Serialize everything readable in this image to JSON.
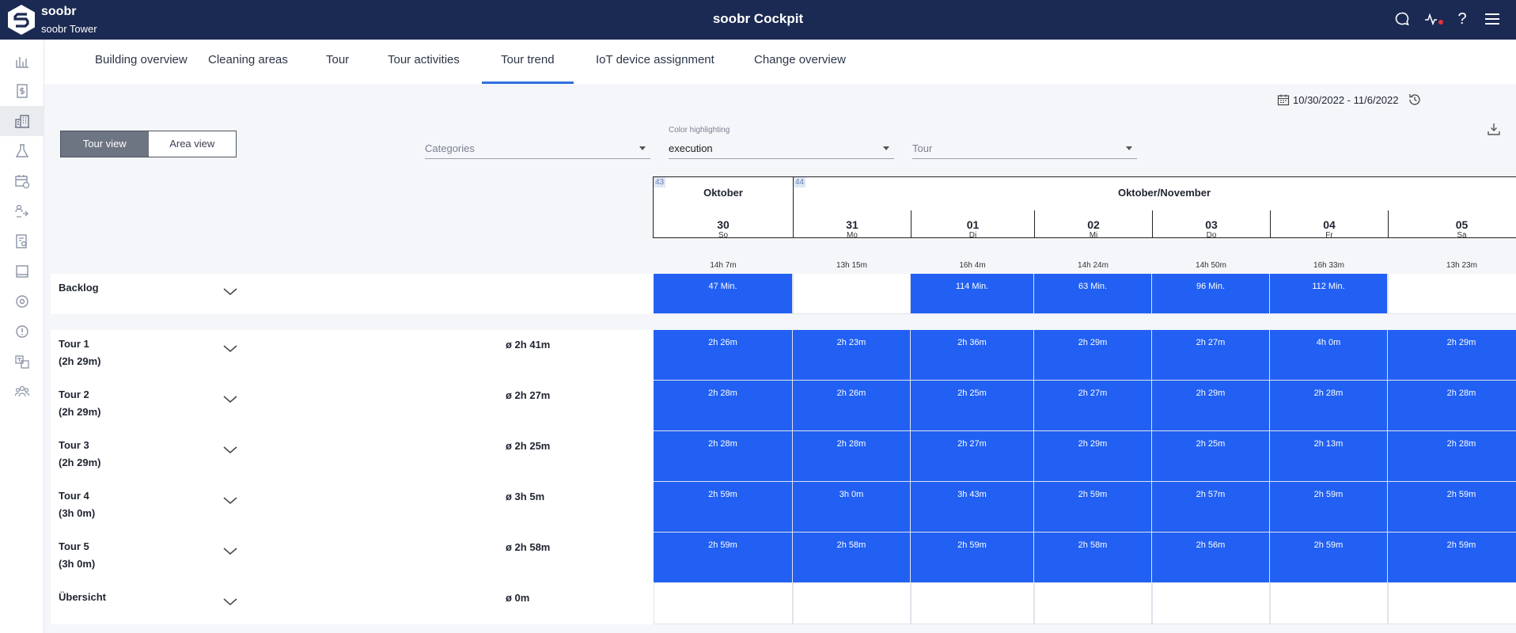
{
  "header": {
    "brand_name": "soobr",
    "building": "soobr Tower",
    "title": "soobr Cockpit",
    "icons": [
      "chat-icon",
      "activity-icon",
      "help-icon",
      "menu-icon"
    ]
  },
  "sidebar": {
    "items": [
      {
        "icon": "bar-chart-icon"
      },
      {
        "icon": "dollar-document-icon"
      },
      {
        "icon": "building-icon",
        "active": true
      },
      {
        "icon": "flask-icon"
      },
      {
        "icon": "calendar-clock-icon"
      },
      {
        "icon": "people-switch-icon"
      },
      {
        "icon": "document-search-icon"
      },
      {
        "icon": "tablet-icon"
      },
      {
        "icon": "target-icon"
      },
      {
        "icon": "alert-circle-icon"
      },
      {
        "icon": "translate-icon"
      },
      {
        "icon": "team-icon"
      }
    ]
  },
  "tabs": [
    {
      "label": "Building overview"
    },
    {
      "label": "Cleaning areas"
    },
    {
      "label": "Tour"
    },
    {
      "label": "Tour activities"
    },
    {
      "label": "Tour trend",
      "active": true
    },
    {
      "label": "IoT device assignment"
    },
    {
      "label": "Change overview"
    }
  ],
  "toolbar": {
    "view_tour": "Tour view",
    "view_area": "Area view",
    "categories_placeholder": "Categories",
    "color_label": "Color highlighting",
    "color_value": "execution",
    "tour_placeholder": "Tour",
    "date_range": "10/30/2022 - 11/6/2022"
  },
  "calendar": {
    "weeks": [
      {
        "number": "43",
        "month": "Oktober"
      },
      {
        "number": "44",
        "month": "Oktober/November"
      }
    ],
    "days": [
      {
        "num": "30",
        "name": "So",
        "duration": "14h 7m"
      },
      {
        "num": "31",
        "name": "Mo",
        "duration": "13h 15m"
      },
      {
        "num": "01",
        "name": "Di",
        "duration": "16h 4m"
      },
      {
        "num": "02",
        "name": "Mi",
        "duration": "14h 24m"
      },
      {
        "num": "03",
        "name": "Do",
        "duration": "14h 50m"
      },
      {
        "num": "04",
        "name": "Fr",
        "duration": "16h 33m"
      },
      {
        "num": "05",
        "name": "Sa",
        "duration": "13h 23m"
      }
    ]
  },
  "backlog": {
    "label": "Backlog",
    "cells": [
      "47 Min.",
      "",
      "114 Min.",
      "63 Min.",
      "96 Min.",
      "112 Min.",
      ""
    ]
  },
  "tours": [
    {
      "name": "Tour 1",
      "planned": "(2h 29m)",
      "avg": "ø 2h 41m",
      "cells": [
        "2h 26m",
        "2h 23m",
        "2h 36m",
        "2h 29m",
        "2h 27m",
        "4h 0m",
        "2h 29m"
      ]
    },
    {
      "name": "Tour 2",
      "planned": "(2h 29m)",
      "avg": "ø 2h 27m",
      "cells": [
        "2h 28m",
        "2h 26m",
        "2h 25m",
        "2h 27m",
        "2h 29m",
        "2h 28m",
        "2h 28m"
      ]
    },
    {
      "name": "Tour 3",
      "planned": "(2h 29m)",
      "avg": "ø 2h 25m",
      "cells": [
        "2h 28m",
        "2h 28m",
        "2h 27m",
        "2h 29m",
        "2h 25m",
        "2h 13m",
        "2h 28m"
      ]
    },
    {
      "name": "Tour 4",
      "planned": "(3h 0m)",
      "avg": "ø 3h 5m",
      "cells": [
        "2h 59m",
        "3h 0m",
        "3h 43m",
        "2h 59m",
        "2h 57m",
        "2h 59m",
        "2h 59m"
      ]
    },
    {
      "name": "Tour 5",
      "planned": "(3h 0m)",
      "avg": "ø 2h 58m",
      "cells": [
        "2h 59m",
        "2h 58m",
        "2h 59m",
        "2h 58m",
        "2h 56m",
        "2h 59m",
        "2h 59m"
      ]
    }
  ],
  "overview": {
    "label": "Übersicht",
    "avg": "ø 0m",
    "cells": [
      "",
      "",
      "",
      "",
      "",
      "",
      ""
    ]
  },
  "colors": {
    "header_bg": "#1b2a52",
    "cell_blue": "#2160f3",
    "tab_active": "#2f6fe0",
    "status_dot": "#e8333a"
  }
}
